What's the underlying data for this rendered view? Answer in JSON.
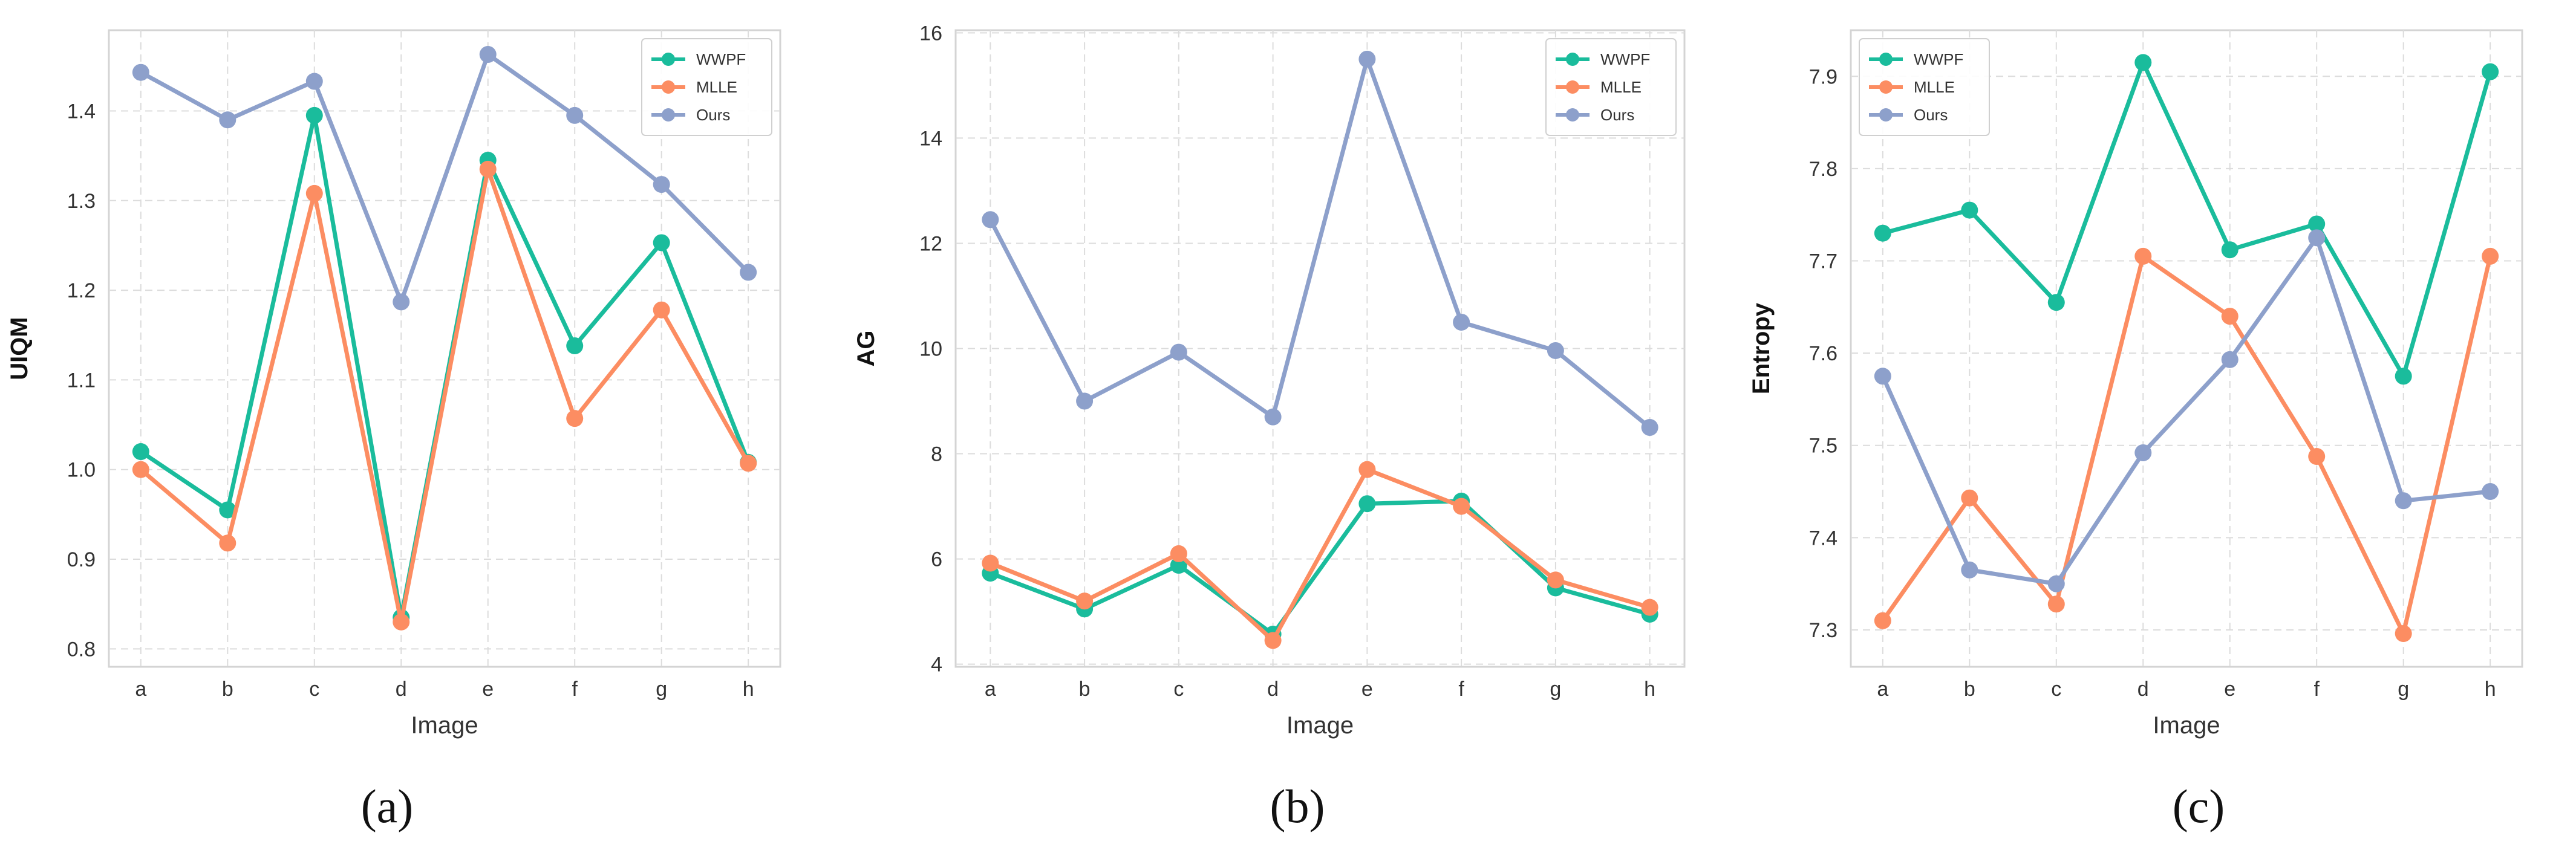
{
  "captions": [
    "(a)",
    "(b)",
    "(c)"
  ],
  "colors": {
    "WWPF": "#1abc9c",
    "MLLE": "#fc8d62",
    "Ours": "#8da0cb"
  },
  "chart_data": [
    {
      "type": "line",
      "xlabel": "Image",
      "ylabel": "UIQM",
      "categories": [
        "a",
        "b",
        "c",
        "d",
        "e",
        "f",
        "g",
        "h"
      ],
      "ylim": [
        0.78,
        1.49
      ],
      "yticks": [
        "0.8",
        "0.9",
        "1.0",
        "1.1",
        "1.2",
        "1.3",
        "1.4"
      ],
      "grid": true,
      "legend_position": "top-right",
      "series": [
        {
          "name": "WWPF",
          "values": [
            1.02,
            0.955,
            1.395,
            0.835,
            1.345,
            1.138,
            1.253,
            1.008
          ]
        },
        {
          "name": "MLLE",
          "values": [
            1.0,
            0.918,
            1.308,
            0.83,
            1.335,
            1.057,
            1.178,
            1.007
          ]
        },
        {
          "name": "Ours",
          "values": [
            1.443,
            1.39,
            1.433,
            1.187,
            1.463,
            1.395,
            1.318,
            1.22
          ]
        }
      ]
    },
    {
      "type": "line",
      "xlabel": "Image",
      "ylabel": "AG",
      "categories": [
        "a",
        "b",
        "c",
        "d",
        "e",
        "f",
        "g",
        "h"
      ],
      "ylim": [
        3.95,
        16.05
      ],
      "yticks": [
        "4",
        "6",
        "8",
        "10",
        "12",
        "14",
        "16"
      ],
      "grid": true,
      "legend_position": "top-right",
      "series": [
        {
          "name": "WWPF",
          "values": [
            5.73,
            5.05,
            5.88,
            4.57,
            7.05,
            7.1,
            5.45,
            4.95
          ]
        },
        {
          "name": "MLLE",
          "values": [
            5.92,
            5.2,
            6.1,
            4.45,
            7.7,
            7.0,
            5.6,
            5.08
          ]
        },
        {
          "name": "Ours",
          "values": [
            12.45,
            9.0,
            9.93,
            8.7,
            15.5,
            10.5,
            9.96,
            8.5
          ]
        }
      ]
    },
    {
      "type": "line",
      "xlabel": "Image",
      "ylabel": "Entropy",
      "categories": [
        "a",
        "b",
        "c",
        "d",
        "e",
        "f",
        "g",
        "h"
      ],
      "ylim": [
        7.26,
        7.95
      ],
      "yticks": [
        "7.3",
        "7.4",
        "7.5",
        "7.6",
        "7.7",
        "7.8",
        "7.9"
      ],
      "grid": true,
      "legend_position": "top-left",
      "series": [
        {
          "name": "WWPF",
          "values": [
            7.73,
            7.755,
            7.655,
            7.915,
            7.712,
            7.74,
            7.575,
            7.905
          ]
        },
        {
          "name": "MLLE",
          "values": [
            7.31,
            7.443,
            7.328,
            7.705,
            7.64,
            7.488,
            7.296,
            7.705
          ]
        },
        {
          "name": "Ours",
          "values": [
            7.575,
            7.365,
            7.35,
            7.492,
            7.593,
            7.725,
            7.44,
            7.45
          ]
        }
      ]
    }
  ]
}
